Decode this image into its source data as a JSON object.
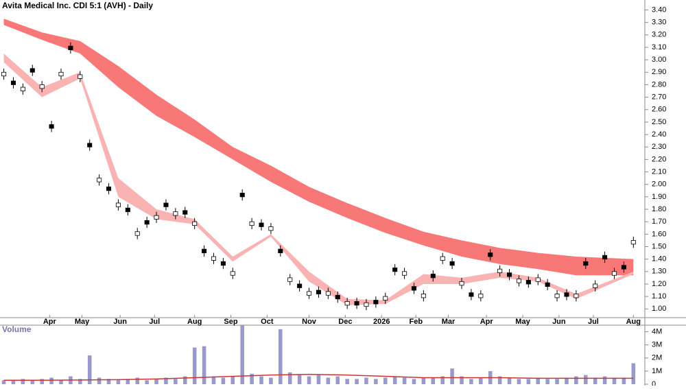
{
  "chart_data": [
    {
      "type": "candlestick",
      "title": "Avita Medical Inc. CDI 5:1 (AVH) - Daily",
      "x": [
        0,
        5,
        10,
        15,
        20,
        25,
        30,
        35,
        40,
        45,
        50,
        55,
        60,
        65,
        70,
        75,
        80,
        85,
        90,
        95,
        100,
        105,
        110,
        115,
        120,
        125,
        130,
        135,
        140,
        145,
        150,
        155,
        160,
        165,
        170,
        175,
        180,
        185,
        190,
        195,
        200,
        205,
        210,
        215,
        220,
        225,
        230,
        235,
        240,
        245,
        250,
        255,
        260,
        265,
        270,
        275,
        280,
        285,
        290,
        295,
        300,
        305,
        310,
        315,
        320,
        325,
        330
      ],
      "open": [
        2.87,
        2.83,
        2.75,
        2.93,
        2.77,
        2.48,
        2.87,
        3.11,
        2.85,
        2.33,
        2.02,
        1.98,
        1.82,
        1.81,
        1.59,
        1.71,
        1.72,
        1.85,
        1.75,
        1.79,
        1.67,
        1.48,
        1.39,
        1.38,
        1.27,
        1.93,
        1.67,
        1.69,
        1.63,
        1.48,
        1.22,
        1.2,
        1.11,
        1.15,
        1.11,
        1.11,
        1.03,
        1.06,
        1.02,
        1.07,
        1.07,
        1.33,
        1.27,
        1.18,
        1.09,
        1.28,
        1.39,
        1.38,
        1.19,
        1.13,
        1.09,
        1.45,
        1.29,
        1.29,
        1.21,
        1.23,
        1.22,
        1.21,
        1.09,
        1.13,
        1.09,
        1.38,
        1.17,
        1.43,
        1.27,
        1.35,
        1.52
      ],
      "high": [
        2.93,
        2.86,
        2.81,
        2.96,
        2.83,
        2.51,
        2.93,
        3.14,
        2.91,
        2.36,
        2.08,
        2.01,
        1.88,
        1.84,
        1.65,
        1.74,
        1.78,
        1.88,
        1.81,
        1.82,
        1.73,
        1.51,
        1.45,
        1.41,
        1.33,
        1.96,
        1.73,
        1.72,
        1.69,
        1.51,
        1.28,
        1.23,
        1.17,
        1.18,
        1.17,
        1.14,
        1.09,
        1.09,
        1.08,
        1.1,
        1.13,
        1.36,
        1.33,
        1.21,
        1.15,
        1.31,
        1.45,
        1.41,
        1.25,
        1.16,
        1.15,
        1.48,
        1.35,
        1.32,
        1.27,
        1.26,
        1.28,
        1.24,
        1.15,
        1.16,
        1.15,
        1.41,
        1.23,
        1.46,
        1.33,
        1.38,
        1.58
      ],
      "low": [
        2.84,
        2.77,
        2.72,
        2.87,
        2.74,
        2.42,
        2.84,
        3.05,
        2.82,
        2.27,
        1.99,
        1.92,
        1.79,
        1.75,
        1.56,
        1.65,
        1.69,
        1.79,
        1.72,
        1.73,
        1.64,
        1.42,
        1.36,
        1.32,
        1.24,
        1.87,
        1.64,
        1.63,
        1.6,
        1.42,
        1.19,
        1.14,
        1.08,
        1.09,
        1.08,
        1.05,
        1.0,
        1.0,
        0.99,
        1.01,
        1.04,
        1.27,
        1.24,
        1.12,
        1.06,
        1.22,
        1.36,
        1.32,
        1.16,
        1.07,
        1.06,
        1.39,
        1.26,
        1.23,
        1.18,
        1.17,
        1.19,
        1.15,
        1.06,
        1.07,
        1.06,
        1.32,
        1.14,
        1.37,
        1.24,
        1.29,
        1.49
      ],
      "close": [
        2.9,
        2.8,
        2.78,
        2.9,
        2.8,
        2.45,
        2.9,
        3.08,
        2.88,
        2.3,
        2.05,
        1.95,
        1.85,
        1.78,
        1.62,
        1.68,
        1.75,
        1.82,
        1.78,
        1.76,
        1.7,
        1.45,
        1.42,
        1.35,
        1.3,
        1.9,
        1.7,
        1.66,
        1.66,
        1.45,
        1.25,
        1.17,
        1.14,
        1.12,
        1.14,
        1.08,
        1.06,
        1.03,
        1.05,
        1.04,
        1.1,
        1.3,
        1.3,
        1.15,
        1.12,
        1.25,
        1.42,
        1.35,
        1.22,
        1.1,
        1.12,
        1.42,
        1.32,
        1.26,
        1.24,
        1.2,
        1.25,
        1.18,
        1.12,
        1.1,
        1.12,
        1.35,
        1.2,
        1.4,
        1.3,
        1.32,
        1.55
      ],
      "band_x": [
        0,
        20,
        40,
        60,
        80,
        100,
        120,
        140,
        160,
        180,
        200,
        220,
        240,
        260,
        280,
        300,
        330
      ],
      "bands": [
        {
          "color": "#f87878",
          "upper": [
            3.33,
            3.22,
            3.15,
            2.95,
            2.72,
            2.52,
            2.3,
            2.15,
            1.98,
            1.85,
            1.73,
            1.62,
            1.55,
            1.49,
            1.45,
            1.42,
            1.4
          ],
          "lower": [
            3.28,
            3.16,
            3.05,
            2.78,
            2.55,
            2.38,
            2.2,
            2.02,
            1.86,
            1.73,
            1.61,
            1.51,
            1.42,
            1.36,
            1.32,
            1.27,
            1.27
          ]
        },
        {
          "color": "#f9b3b3",
          "upper": [
            3.05,
            2.78,
            2.9,
            2.05,
            1.8,
            1.72,
            1.42,
            1.6,
            1.3,
            1.08,
            1.07,
            1.28,
            1.25,
            1.3,
            1.25,
            1.12,
            1.3
          ],
          "lower": [
            2.98,
            2.7,
            2.85,
            1.9,
            1.72,
            1.68,
            1.38,
            1.58,
            1.22,
            1.03,
            1.04,
            1.2,
            1.2,
            1.25,
            1.22,
            1.08,
            1.28
          ]
        }
      ],
      "xlim": [
        -2,
        336
      ],
      "xticks": [
        {
          "value": 24,
          "label": "Apr"
        },
        {
          "value": 41,
          "label": "May"
        },
        {
          "value": 61,
          "label": "Jun"
        },
        {
          "value": 79,
          "label": "Jul"
        },
        {
          "value": 100,
          "label": "Aug"
        },
        {
          "value": 119,
          "label": "Sep"
        },
        {
          "value": 138,
          "label": "Oct"
        },
        {
          "value": 160,
          "label": "Nov"
        },
        {
          "value": 179,
          "label": "Dec"
        },
        {
          "value": 198,
          "label": "2026"
        },
        {
          "value": 216,
          "label": "Feb"
        },
        {
          "value": 233,
          "label": "Mar"
        },
        {
          "value": 253,
          "label": "Apr"
        },
        {
          "value": 272,
          "label": "May"
        },
        {
          "value": 291,
          "label": "Jun"
        },
        {
          "value": 309,
          "label": "Jul"
        },
        {
          "value": 330,
          "label": "Aug"
        }
      ],
      "ylim": [
        0.93,
        3.48
      ],
      "yticks": [
        {
          "value": 1,
          "label": "1.00"
        },
        {
          "value": 1.1,
          "label": "1.10"
        },
        {
          "value": 1.2,
          "label": "1.20"
        },
        {
          "value": 1.3,
          "label": "1.30"
        },
        {
          "value": 1.4,
          "label": "1.40"
        },
        {
          "value": 1.5,
          "label": "1.50"
        },
        {
          "value": 1.6,
          "label": "1.60"
        },
        {
          "value": 1.7,
          "label": "1.70"
        },
        {
          "value": 1.8,
          "label": "1.80"
        },
        {
          "value": 1.9,
          "label": "1.90"
        },
        {
          "value": 2,
          "label": "2.00"
        },
        {
          "value": 2.1,
          "label": "2.10"
        },
        {
          "value": 2.2,
          "label": "2.20"
        },
        {
          "value": 2.3,
          "label": "2.30"
        },
        {
          "value": 2.4,
          "label": "2.40"
        },
        {
          "value": 2.5,
          "label": "2.50"
        },
        {
          "value": 2.6,
          "label": "2.60"
        },
        {
          "value": 2.7,
          "label": "2.70"
        },
        {
          "value": 2.8,
          "label": "2.80"
        },
        {
          "value": 2.9,
          "label": "2.90"
        },
        {
          "value": 3,
          "label": "3.00"
        },
        {
          "value": 3.1,
          "label": "3.10"
        },
        {
          "value": 3.2,
          "label": "3.20"
        },
        {
          "value": 3.3,
          "label": "3.30"
        },
        {
          "value": 3.4,
          "label": "3.40"
        }
      ]
    },
    {
      "type": "bar",
      "title": "Volume",
      "color": "#9999cc",
      "values": [
        0.3,
        0.3,
        0.4,
        0.3,
        0.4,
        0.5,
        0.3,
        0.6,
        0.4,
        2.2,
        0.5,
        0.4,
        0.3,
        0.4,
        0.5,
        0.3,
        0.4,
        0.5,
        0.4,
        0.6,
        2.8,
        2.9,
        0.6,
        0.5,
        0.6,
        4.5,
        0.8,
        0.6,
        0.5,
        4.2,
        0.9,
        0.7,
        0.6,
        0.7,
        0.5,
        0.6,
        0.4,
        0.4,
        0.5,
        0.4,
        0.5,
        0.6,
        0.5,
        0.4,
        0.5,
        0.5,
        0.6,
        1.2,
        0.6,
        0.4,
        0.5,
        1.0,
        0.6,
        0.5,
        0.4,
        0.4,
        0.5,
        0.4,
        0.4,
        0.5,
        0.6,
        0.7,
        0.5,
        0.6,
        0.5,
        0.5,
        1.6
      ],
      "average": {
        "color": "#cc3333",
        "values": [
          0.3,
          0.3,
          0.32,
          0.35,
          0.4,
          0.5,
          0.6,
          0.7,
          0.75,
          0.7,
          0.6,
          0.5,
          0.5,
          0.5,
          0.45,
          0.45,
          0.45
        ]
      },
      "ylim": [
        0,
        4.4
      ],
      "yticks": [
        {
          "value": 0,
          "label": "0"
        },
        {
          "value": 1,
          "label": "1M"
        },
        {
          "value": 2,
          "label": "2M"
        },
        {
          "value": 3,
          "label": "3M"
        },
        {
          "value": 4,
          "label": "4M"
        }
      ]
    }
  ]
}
